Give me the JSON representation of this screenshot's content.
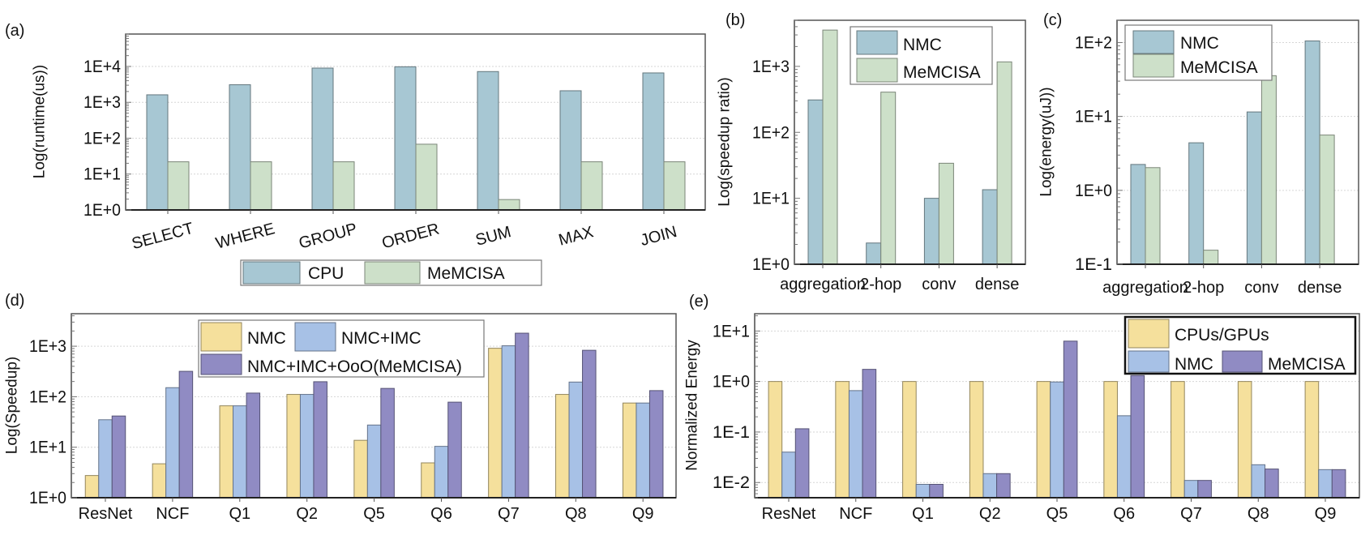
{
  "chart_data": [
    {
      "id": "a",
      "panel_label": "(a)",
      "type": "bar",
      "ylabel": "Log(runtime(us))",
      "yscale": "log",
      "ylim": [
        1,
        80000
      ],
      "grid": true,
      "legend_placement": "bottom",
      "categories": [
        "SELECT",
        "WHERE",
        "GROUP",
        "ORDER",
        "SUM",
        "MAX",
        "JOIN"
      ],
      "yticks": [
        {
          "value": 1,
          "label": "1E+0"
        },
        {
          "value": 10,
          "label": "1E+1"
        },
        {
          "value": 100,
          "label": "1E+2"
        },
        {
          "value": 1000,
          "label": "1E+3"
        },
        {
          "value": 10000,
          "label": "1E+4"
        }
      ],
      "series": [
        {
          "name": "CPU",
          "color": "#a7c7d3",
          "values": [
            1620,
            3090,
            9000,
            9800,
            7200,
            2100,
            6600
          ]
        },
        {
          "name": "MeMCISA",
          "color": "#cde0c9",
          "values": [
            22,
            22,
            22,
            68,
            1.95,
            22,
            22
          ]
        }
      ]
    },
    {
      "id": "b",
      "panel_label": "(b)",
      "type": "bar",
      "ylabel": "Log(speedup ratio)",
      "yscale": "log",
      "ylim": [
        1,
        5000
      ],
      "grid": false,
      "legend_placement": "top-right",
      "categories": [
        "aggregation",
        "2-hop",
        "conv",
        "dense"
      ],
      "yticks": [
        {
          "value": 1,
          "label": "1E+0"
        },
        {
          "value": 10,
          "label": "1E+1"
        },
        {
          "value": 100,
          "label": "1E+2"
        },
        {
          "value": 1000,
          "label": "1E+3"
        }
      ],
      "series": [
        {
          "name": "NMC",
          "color": "#a7c7d3",
          "values": [
            310,
            2.1,
            10,
            13.5
          ]
        },
        {
          "name": "MeMCISA",
          "color": "#cde0c9",
          "values": [
            3550,
            407,
            34,
            1170
          ]
        }
      ]
    },
    {
      "id": "c",
      "panel_label": "(c)",
      "type": "bar",
      "ylabel": "Log(energy(uJ))",
      "yscale": "log",
      "ylim": [
        0.1,
        200
      ],
      "grid": true,
      "legend_placement": "top-left",
      "categories": [
        "aggregation",
        "2-hop",
        "conv",
        "dense"
      ],
      "yticks": [
        {
          "value": 0.1,
          "label": "1E-1"
        },
        {
          "value": 1,
          "label": "1E+0"
        },
        {
          "value": 10,
          "label": "1E+1"
        },
        {
          "value": 100,
          "label": "1E+2"
        }
      ],
      "series": [
        {
          "name": "NMC",
          "color": "#a7c7d3",
          "values": [
            2.24,
            4.4,
            11.5,
            105
          ]
        },
        {
          "name": "MeMCISA",
          "color": "#cde0c9",
          "values": [
            2.03,
            0.155,
            35.6,
            5.6
          ]
        }
      ]
    },
    {
      "id": "d",
      "panel_label": "(d)",
      "type": "bar",
      "ylabel": "Log(Speedup)",
      "yscale": "log",
      "ylim": [
        1,
        4400
      ],
      "grid": true,
      "legend_placement": "top-left",
      "categories": [
        "ResNet",
        "NCF",
        "Q1",
        "Q2",
        "Q5",
        "Q6",
        "Q7",
        "Q8",
        "Q9"
      ],
      "yticks": [
        {
          "value": 1,
          "label": "1E+0"
        },
        {
          "value": 10,
          "label": "1E+1"
        },
        {
          "value": 100,
          "label": "1E+2"
        },
        {
          "value": 1000,
          "label": "1E+3"
        }
      ],
      "series": [
        {
          "name": "NMC",
          "color": "#f5e09c",
          "values": [
            2.75,
            4.7,
            66,
            111,
            13.7,
            4.9,
            910,
            111,
            75
          ]
        },
        {
          "name": "NMC+IMC",
          "color": "#a7c1e6",
          "values": [
            35,
            151,
            66,
            111,
            27.5,
            10.4,
            1020,
            195,
            75
          ]
        },
        {
          "name": "NMC+IMC+OoO(MeMCISA)",
          "color": "#908bc3",
          "values": [
            41.5,
            318,
            118,
            198,
            146,
            78,
            1810,
            830,
            132
          ]
        }
      ]
    },
    {
      "id": "e",
      "panel_label": "(e)",
      "type": "bar",
      "ylabel": "Normalized Energy",
      "yscale": "log",
      "ylim": [
        0.005,
        22
      ],
      "grid": true,
      "legend_placement": "top-right",
      "categories": [
        "ResNet",
        "NCF",
        "Q1",
        "Q2",
        "Q5",
        "Q6",
        "Q7",
        "Q8",
        "Q9"
      ],
      "yticks": [
        {
          "value": 0.01,
          "label": "1E-2"
        },
        {
          "value": 0.1,
          "label": "1E-1"
        },
        {
          "value": 1,
          "label": "1E+0"
        },
        {
          "value": 10,
          "label": "1E+1"
        }
      ],
      "series": [
        {
          "name": "CPUs/GPUs",
          "color": "#f5e09c",
          "values": [
            1,
            1,
            1,
            1,
            1,
            1,
            1,
            1,
            1
          ]
        },
        {
          "name": "NMC",
          "color": "#a7c1e6",
          "values": [
            0.04,
            0.66,
            0.0092,
            0.015,
            0.98,
            0.21,
            0.011,
            0.0225,
            0.018
          ]
        },
        {
          "name": "MeMCISA",
          "color": "#908bc3",
          "values": [
            0.116,
            1.74,
            0.0092,
            0.015,
            6.3,
            1.31,
            0.011,
            0.0185,
            0.018
          ]
        }
      ]
    }
  ]
}
